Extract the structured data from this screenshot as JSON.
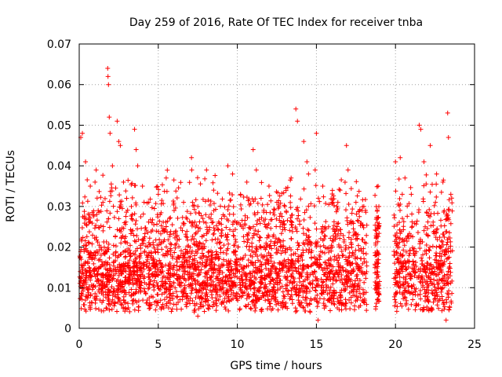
{
  "chart_data": {
    "type": "scatter",
    "title": "Day 259 of 2016, Rate Of TEC Index for receiver tnba",
    "xlabel": "GPS time / hours",
    "ylabel": "ROTI / TECUs",
    "xlim": [
      0,
      25
    ],
    "ylim": [
      0,
      0.07
    ],
    "x_ticks": [
      0,
      5,
      10,
      15,
      20,
      25
    ],
    "x_tick_labels": [
      "0",
      "5",
      "10",
      "15",
      "20",
      "25"
    ],
    "y_ticks": [
      0,
      0.01,
      0.02,
      0.03,
      0.04,
      0.05,
      0.06,
      0.07
    ],
    "y_tick_labels": [
      "0",
      "0.01",
      "0.02",
      "0.03",
      "0.04",
      "0.05",
      "0.06",
      "0.07"
    ],
    "grid": true,
    "marker": "+",
    "color": "#ff0000",
    "data_gaps_hours": [
      [
        18.2,
        18.7
      ],
      [
        19.0,
        19.9
      ]
    ],
    "series": [
      {
        "name": "ROTI",
        "points": [
          [
            0.1,
            0.047
          ],
          [
            0.2,
            0.048
          ],
          [
            0.4,
            0.041
          ],
          [
            0.7,
            0.035
          ],
          [
            1.0,
            0.036
          ],
          [
            1.2,
            0.029
          ],
          [
            1.5,
            0.031
          ],
          [
            1.8,
            0.064
          ],
          [
            1.82,
            0.062
          ],
          [
            1.85,
            0.06
          ],
          [
            1.9,
            0.052
          ],
          [
            1.95,
            0.048
          ],
          [
            2.1,
            0.04
          ],
          [
            2.4,
            0.051
          ],
          [
            2.5,
            0.046
          ],
          [
            2.6,
            0.045
          ],
          [
            2.8,
            0.036
          ],
          [
            3.0,
            0.032
          ],
          [
            3.3,
            0.03
          ],
          [
            3.5,
            0.049
          ],
          [
            3.6,
            0.044
          ],
          [
            3.7,
            0.04
          ],
          [
            4.0,
            0.035
          ],
          [
            4.4,
            0.031
          ],
          [
            5.0,
            0.033
          ],
          [
            5.5,
            0.037
          ],
          [
            6.0,
            0.029
          ],
          [
            6.6,
            0.031
          ],
          [
            7.1,
            0.042
          ],
          [
            7.5,
            0.03
          ],
          [
            8.0,
            0.028
          ],
          [
            8.5,
            0.034
          ],
          [
            9.0,
            0.027
          ],
          [
            9.4,
            0.04
          ],
          [
            9.7,
            0.038
          ],
          [
            10.2,
            0.033
          ],
          [
            10.6,
            0.036
          ],
          [
            11.0,
            0.044
          ],
          [
            11.2,
            0.039
          ],
          [
            11.5,
            0.032
          ],
          [
            12.0,
            0.035
          ],
          [
            12.5,
            0.031
          ],
          [
            13.0,
            0.03
          ],
          [
            13.4,
            0.037
          ],
          [
            13.7,
            0.054
          ],
          [
            13.8,
            0.051
          ],
          [
            14.2,
            0.046
          ],
          [
            14.4,
            0.041
          ],
          [
            14.5,
            0.038
          ],
          [
            15.0,
            0.048
          ],
          [
            15.4,
            0.035
          ],
          [
            16.0,
            0.031
          ],
          [
            16.5,
            0.034
          ],
          [
            16.9,
            0.045
          ],
          [
            17.0,
            0.039
          ],
          [
            17.5,
            0.031
          ],
          [
            18.0,
            0.03
          ],
          [
            18.9,
            0.035
          ],
          [
            18.95,
            0.03
          ],
          [
            20.0,
            0.041
          ],
          [
            20.3,
            0.042
          ],
          [
            20.6,
            0.037
          ],
          [
            21.0,
            0.033
          ],
          [
            21.5,
            0.05
          ],
          [
            21.6,
            0.049
          ],
          [
            21.8,
            0.041
          ],
          [
            22.2,
            0.045
          ],
          [
            22.6,
            0.038
          ],
          [
            23.0,
            0.036
          ],
          [
            23.3,
            0.053
          ],
          [
            23.35,
            0.047
          ],
          [
            23.5,
            0.033
          ],
          [
            15.1,
            0.002
          ],
          [
            14.6,
            0.004
          ],
          [
            23.2,
            0.002
          ],
          [
            7.5,
            0.003
          ],
          [
            1.7,
            0.005
          ]
        ]
      }
    ]
  }
}
